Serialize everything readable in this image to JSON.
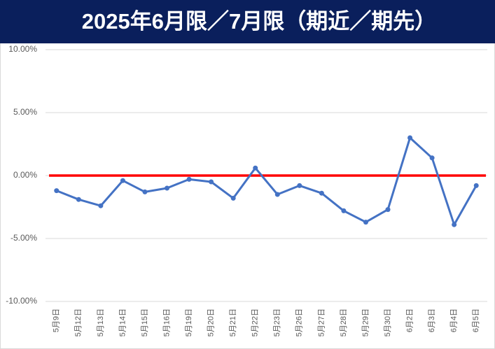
{
  "chart_data": {
    "type": "line",
    "title": "2025年6月限／7月限（期近／期先）",
    "categories": [
      "5月9日",
      "5月12日",
      "5月13日",
      "5月14日",
      "5月15日",
      "5月16日",
      "5月19日",
      "5月20日",
      "5月21日",
      "5月22日",
      "5月23日",
      "5月26日",
      "5月27日",
      "5月28日",
      "5月29日",
      "5月30日",
      "6月2日",
      "6月3日",
      "6月4日",
      "6月5日"
    ],
    "values": [
      -1.2,
      -1.9,
      -2.4,
      -0.4,
      -1.3,
      -1.0,
      -0.3,
      -0.5,
      -1.8,
      0.6,
      -1.5,
      -0.8,
      -1.4,
      -2.8,
      -3.7,
      -2.7,
      3.0,
      1.4,
      -3.9,
      -0.8
    ],
    "color": "#4472c4",
    "zero_line": {
      "value": 0,
      "color": "#ff0000"
    },
    "ylim": [
      -10,
      10
    ],
    "yticks": [
      {
        "value": -10,
        "label": "-10.00%"
      },
      {
        "value": -5,
        "label": "-5.00%"
      },
      {
        "value": 0,
        "label": "0.00%"
      },
      {
        "value": 5,
        "label": "5.00%"
      },
      {
        "value": 10,
        "label": "10.00%"
      }
    ],
    "grid": true
  }
}
